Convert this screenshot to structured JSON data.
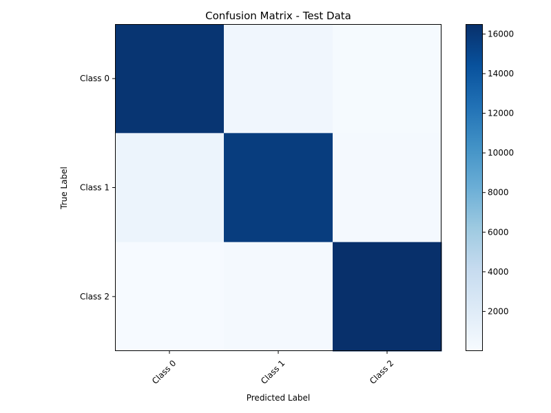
{
  "chart_data": {
    "type": "heatmap",
    "title": "Confusion Matrix - Test Data",
    "xlabel": "Predicted Label",
    "ylabel": "True Label",
    "x_categories": [
      "Class 0",
      "Class 1",
      "Class 2"
    ],
    "y_categories": [
      "Class 0",
      "Class 1",
      "Class 2"
    ],
    "matrix": [
      [
        16200,
        600,
        150
      ],
      [
        900,
        15700,
        250
      ],
      [
        100,
        250,
        16500
      ]
    ],
    "colormap": "Blues",
    "color_range": [
      0,
      16500
    ],
    "colorbar_ticks": [
      2000,
      4000,
      6000,
      8000,
      10000,
      12000,
      14000,
      16000
    ],
    "colorbar_tick_labels": [
      "2000",
      "4000",
      "6000",
      "8000",
      "10000",
      "12000",
      "14000",
      "16000"
    ],
    "x_tick_rotation_deg": 45,
    "grid": false,
    "colorbar_position": "right"
  }
}
